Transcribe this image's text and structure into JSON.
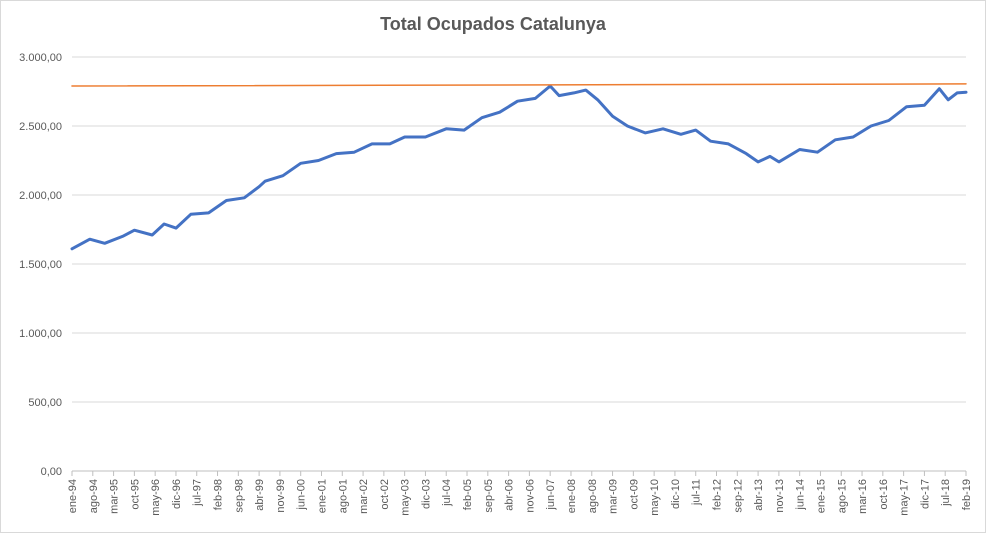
{
  "chart_data": {
    "type": "line",
    "title": "Total Ocupados Catalunya",
    "xlabel": "",
    "ylabel": "",
    "ylim": [
      0,
      3000
    ],
    "y_ticks": [
      "0,00",
      "500,00",
      "1.000,00",
      "1.500,00",
      "2.000,00",
      "2.500,00",
      "3.000,00"
    ],
    "x_range": [
      "ene-94",
      "feb-19"
    ],
    "x_ticks": [
      "ene-94",
      "ago-94",
      "mar-95",
      "oct-95",
      "may-96",
      "dic-96",
      "jul-97",
      "feb-98",
      "sep-98",
      "abr-99",
      "nov-99",
      "jun-00",
      "ene-01",
      "ago-01",
      "mar-02",
      "oct-02",
      "may-03",
      "dic-03",
      "jul-04",
      "feb-05",
      "sep-05",
      "abr-06",
      "nov-06",
      "jun-07",
      "ene-08",
      "ago-08",
      "mar-09",
      "oct-09",
      "may-10",
      "dic-10",
      "jul-11",
      "feb-12",
      "sep-12",
      "abr-13",
      "nov-13",
      "jun-14",
      "ene-15",
      "ago-15",
      "mar-16",
      "oct-16",
      "may-17",
      "dic-17",
      "jul-18",
      "feb-19"
    ],
    "grid": true,
    "legend": "none",
    "series": [
      {
        "color": "#4472c4",
        "points": [
          [
            "ene-94",
            1610
          ],
          [
            "jul-94",
            1680
          ],
          [
            "dic-94",
            1650
          ],
          [
            "jun-95",
            1700
          ],
          [
            "oct-95",
            1745
          ],
          [
            "abr-96",
            1710
          ],
          [
            "ago-96",
            1790
          ],
          [
            "dic-96",
            1760
          ],
          [
            "may-97",
            1860
          ],
          [
            "nov-97",
            1870
          ],
          [
            "may-98",
            1960
          ],
          [
            "nov-98",
            1980
          ],
          [
            "abr-99",
            2060
          ],
          [
            "jun-99",
            2100
          ],
          [
            "dic-99",
            2140
          ],
          [
            "jun-00",
            2230
          ],
          [
            "dic-00",
            2250
          ],
          [
            "jun-01",
            2300
          ],
          [
            "dic-01",
            2310
          ],
          [
            "jun-02",
            2370
          ],
          [
            "dic-02",
            2370
          ],
          [
            "may-03",
            2420
          ],
          [
            "dic-03",
            2420
          ],
          [
            "jul-04",
            2480
          ],
          [
            "ene-05",
            2470
          ],
          [
            "jul-05",
            2560
          ],
          [
            "ene-06",
            2600
          ],
          [
            "jul-06",
            2680
          ],
          [
            "ene-07",
            2700
          ],
          [
            "jun-07",
            2790
          ],
          [
            "sep-07",
            2720
          ],
          [
            "feb-08",
            2740
          ],
          [
            "jun-08",
            2760
          ],
          [
            "oct-08",
            2690
          ],
          [
            "mar-09",
            2570
          ],
          [
            "ago-09",
            2500
          ],
          [
            "feb-10",
            2450
          ],
          [
            "ago-10",
            2480
          ],
          [
            "feb-11",
            2440
          ],
          [
            "jul-11",
            2470
          ],
          [
            "dic-11",
            2390
          ],
          [
            "jun-12",
            2370
          ],
          [
            "dic-12",
            2300
          ],
          [
            "abr-13",
            2240
          ],
          [
            "ago-13",
            2280
          ],
          [
            "nov-13",
            2240
          ],
          [
            "jun-14",
            2330
          ],
          [
            "dic-14",
            2310
          ],
          [
            "jun-15",
            2400
          ],
          [
            "dic-15",
            2420
          ],
          [
            "jun-16",
            2500
          ],
          [
            "dic-16",
            2540
          ],
          [
            "jun-17",
            2640
          ],
          [
            "dic-17",
            2650
          ],
          [
            "may-18",
            2770
          ],
          [
            "ago-18",
            2690
          ],
          [
            "nov-18",
            2740
          ],
          [
            "feb-19",
            2745
          ]
        ]
      },
      {
        "color": "#ed7d31",
        "points": [
          [
            "ene-94",
            2790
          ],
          [
            "feb-19",
            2805
          ]
        ]
      }
    ]
  }
}
